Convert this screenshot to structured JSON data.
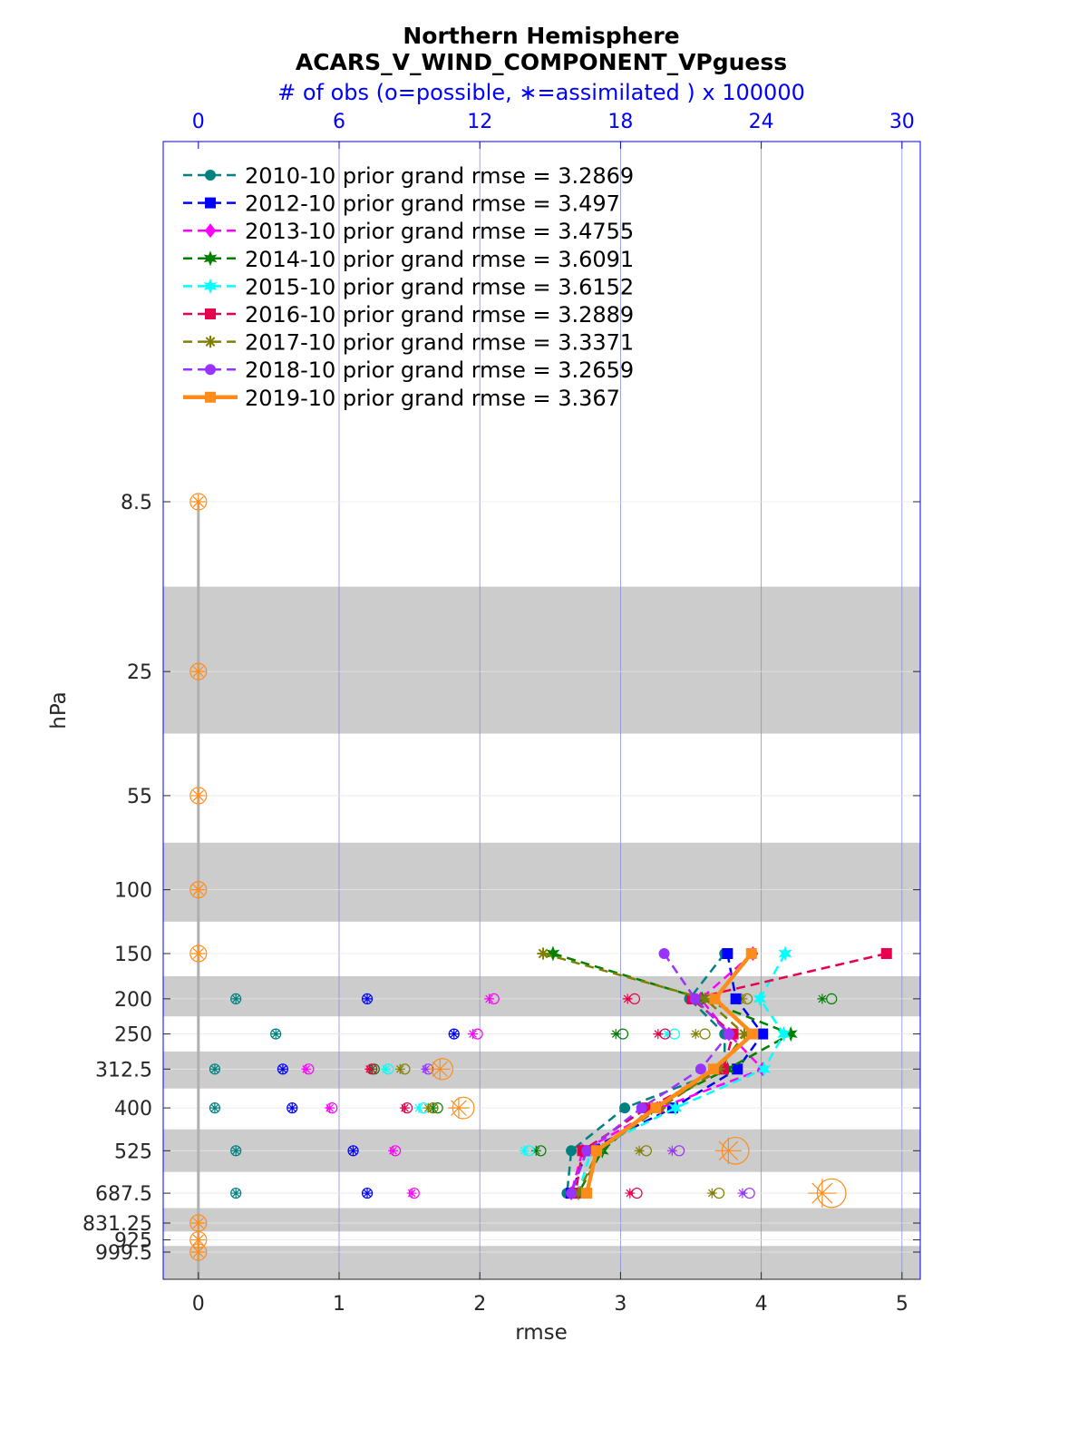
{
  "chart_data": {
    "type": "line",
    "title": "Northern Hemisphere",
    "subtitle": "ACARS_V_WIND_COMPONENT_VPguess",
    "top_axis_label": "# of obs (o=possible, ∗=assimilated ) x 100000",
    "xlabel": "rmse",
    "ylabel": "hPa",
    "xlim": [
      -0.25,
      5.13
    ],
    "xticks": [
      "0",
      "1",
      "2",
      "3",
      "4",
      "5"
    ],
    "top_xlim": [
      -1.5,
      30.78
    ],
    "top_xticks": [
      "0",
      "6",
      "12",
      "18",
      "24",
      "30"
    ],
    "levels": [
      8.5,
      25,
      55,
      100,
      150,
      200,
      250,
      312.5,
      400,
      525,
      687.5,
      831.25,
      925,
      999.5
    ],
    "level_labels": [
      "8.5",
      "25",
      "55",
      "100",
      "150",
      "200",
      "250",
      "312.5",
      "400",
      "525",
      "687.5",
      "831.25",
      "925",
      "999.5"
    ],
    "y_axis": "pressure, log scale, inverted",
    "grid": true,
    "legend_position": "top-left",
    "data_levels": [
      150,
      200,
      250,
      312.5,
      400,
      525,
      687.5
    ],
    "series": [
      {
        "name": "2010-10 prior grand rmse = 3.2869",
        "color": "#008080",
        "marker": "circle",
        "line": "dashed",
        "rmse": [
          3.74,
          3.49,
          3.74,
          3.74,
          3.03,
          2.65,
          2.62
        ],
        "obs_possible": [
          0,
          1.6,
          3.3,
          0.7,
          0.7,
          1.6,
          1.6
        ],
        "obs_assimilated": [
          0,
          1.6,
          3.3,
          0.7,
          0.7,
          1.6,
          1.6
        ]
      },
      {
        "name": "2012-10 prior grand rmse = 3.497",
        "color": "#0000ff",
        "marker": "square",
        "line": "dashed",
        "rmse": [
          3.76,
          3.82,
          4.01,
          3.83,
          3.37,
          2.76,
          2.65
        ],
        "obs_possible": [
          0,
          7.2,
          10.9,
          3.6,
          4.0,
          6.6,
          7.2
        ],
        "obs_assimilated": [
          0,
          7.2,
          10.9,
          3.6,
          4.0,
          6.6,
          7.2
        ]
      },
      {
        "name": "2013-10 prior grand rmse = 3.4755",
        "color": "#ff00ff",
        "marker": "diamond",
        "line": "dashed",
        "rmse": [
          3.94,
          3.57,
          3.77,
          4.01,
          3.28,
          2.73,
          2.65
        ],
        "obs_possible": [
          0,
          12.6,
          11.9,
          4.7,
          5.7,
          8.4,
          9.2
        ],
        "obs_assimilated": [
          0,
          12.4,
          11.7,
          4.6,
          5.6,
          8.3,
          9.1
        ]
      },
      {
        "name": "2014-10 prior grand rmse = 3.6091",
        "color": "#008000",
        "marker": "hexagram",
        "line": "dashed",
        "rmse": [
          2.52,
          3.58,
          4.21,
          3.76,
          3.22,
          2.87,
          2.7
        ],
        "obs_possible": [
          0,
          27.0,
          18.1,
          7.5,
          10.2,
          14.6,
          0
        ],
        "obs_assimilated": [
          0,
          26.6,
          17.8,
          7.4,
          10.0,
          14.4,
          0
        ]
      },
      {
        "name": "2015-10 prior grand rmse = 3.6152",
        "color": "#00ffff",
        "marker": "hexagram",
        "line": "dashed",
        "rmse": [
          4.17,
          3.99,
          4.16,
          4.02,
          3.39,
          2.79,
          2.7
        ],
        "obs_possible": [
          0,
          0,
          20.3,
          8.1,
          9.6,
          14.1,
          0
        ],
        "obs_assimilated": [
          0,
          0,
          20.0,
          8.0,
          9.4,
          13.9,
          0
        ]
      },
      {
        "name": "2016-10 prior grand rmse = 3.2889",
        "color": "#e6004d",
        "marker": "square",
        "line": "dashed",
        "rmse": [
          4.89,
          3.51,
          3.8,
          3.73,
          3.19,
          2.73,
          2.68
        ],
        "obs_possible": [
          0,
          18.6,
          19.9,
          7.4,
          8.9,
          0,
          18.7
        ],
        "obs_assimilated": [
          0,
          18.3,
          19.6,
          7.3,
          8.8,
          0,
          18.4
        ]
      },
      {
        "name": "2017-10 prior grand rmse = 3.3371",
        "color": "#808000",
        "marker": "asterisk",
        "line": "dashed",
        "rmse": [
          2.45,
          3.6,
          3.88,
          3.7,
          3.28,
          2.84,
          2.7
        ],
        "obs_possible": [
          0,
          23.4,
          21.6,
          8.8,
          10.0,
          19.1,
          22.2
        ],
        "obs_assimilated": [
          0,
          23.2,
          21.2,
          8.6,
          9.8,
          18.8,
          21.9
        ]
      },
      {
        "name": "2018-10 prior grand rmse = 3.2659",
        "color": "#9933ff",
        "marker": "circle",
        "line": "dashed",
        "rmse": [
          3.31,
          3.53,
          3.77,
          3.57,
          3.15,
          2.76,
          2.65
        ],
        "obs_possible": [
          0,
          0,
          0,
          9.8,
          0,
          20.5,
          23.5
        ],
        "obs_assimilated": [
          0,
          0,
          0,
          9.7,
          0,
          20.2,
          23.2
        ]
      },
      {
        "name": "2019-10 prior grand rmse = 3.367",
        "color": "#ff8c1a",
        "marker": "square",
        "line": "solid",
        "rmse": [
          3.93,
          3.67,
          3.94,
          3.66,
          3.25,
          2.83,
          2.76
        ],
        "obs_possible": [
          0,
          0,
          0,
          10.4,
          11.3,
          22.9,
          27.0
        ],
        "obs_assimilated": [
          0,
          0,
          0,
          10.3,
          11.1,
          22.6,
          26.6
        ]
      }
    ]
  }
}
